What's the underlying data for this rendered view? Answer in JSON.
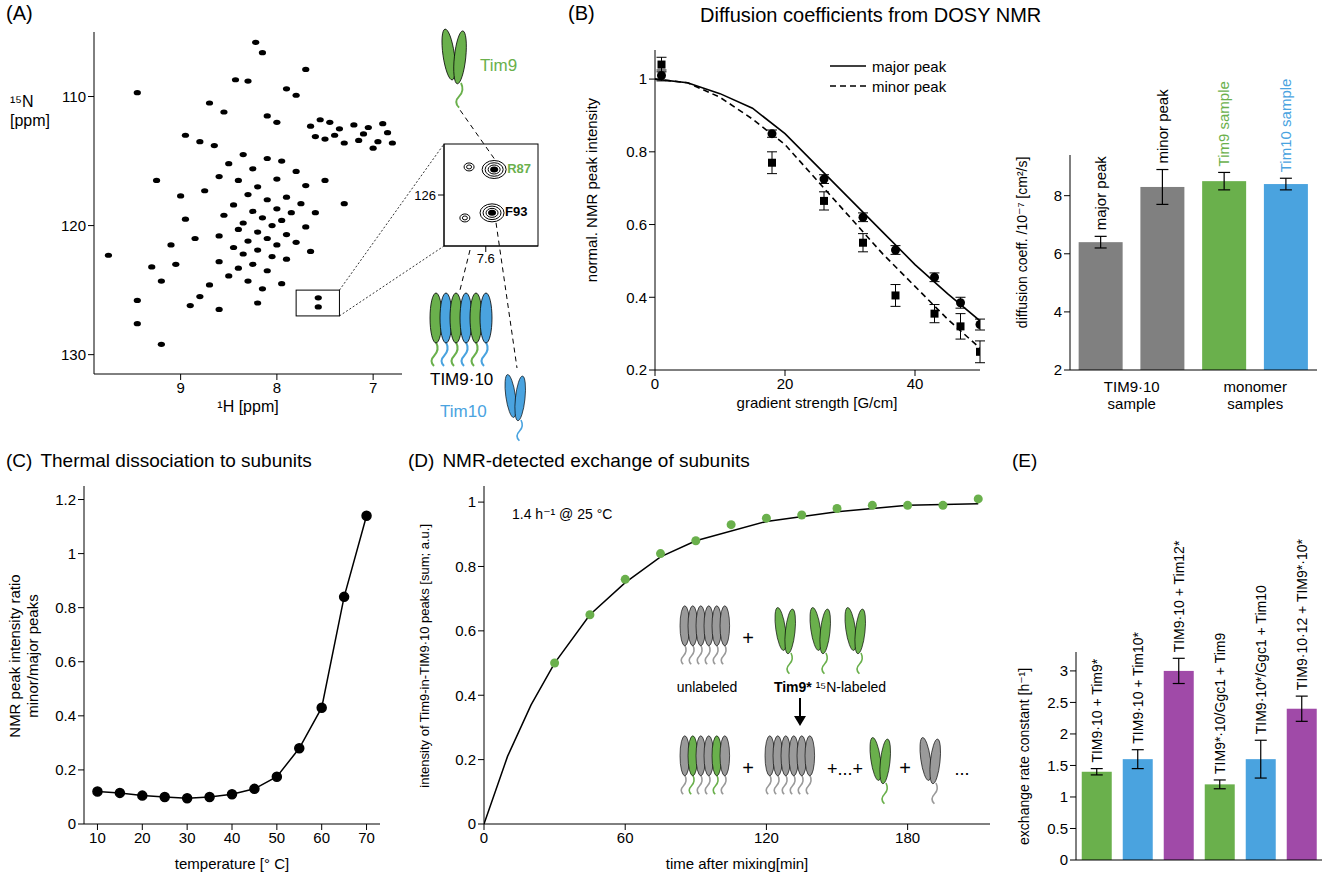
{
  "chart_data": [
    {
      "panel": "(A)",
      "type": "scatter",
      "x_label": "¹H [ppm]",
      "y_label": "¹⁵N [ppm]",
      "xlim": [
        9.9,
        6.7
      ],
      "xticks": [
        9,
        8,
        7
      ],
      "ylim": [
        131.5,
        105
      ],
      "yticks": [
        110,
        120,
        130
      ],
      "series": [
        {
          "color": "#000000",
          "marker": "ellipse",
          "x": [
            8.22,
            8.15,
            7.7,
            8.43,
            8.3,
            7.9,
            7.8,
            9.45,
            8.7,
            8.55,
            8.1,
            8.0,
            7.65,
            8.95,
            8.8,
            8.65,
            7.55,
            7.45,
            7.35,
            7.2,
            7.05,
            6.9,
            6.85,
            7.6,
            7.5,
            7.4,
            7.3,
            7.15,
            6.95,
            6.8,
            7.1,
            7.0,
            8.35,
            8.1,
            7.95,
            8.5,
            8.25,
            7.8,
            8.6,
            8.4,
            8.0,
            7.7,
            8.2,
            8.75,
            8.3,
            7.9,
            8.1,
            7.75,
            8.45,
            8.0,
            8.25,
            7.85,
            8.55,
            8.15,
            7.95,
            8.35,
            8.05,
            7.7,
            8.4,
            8.2,
            7.9,
            8.6,
            8.1,
            8.3,
            7.8,
            8.0,
            8.45,
            8.2,
            7.65,
            8.35,
            8.05,
            7.9,
            8.6,
            8.25,
            8.4,
            8.1,
            8.5,
            8.3,
            7.95,
            8.7,
            8.15,
            9.75,
            9.45,
            9.45,
            9.2,
            9.2,
            9.05,
            9.3,
            9.0,
            8.95,
            9.1,
            8.85,
            8.9,
            8.8,
            9.25,
            7.57,
            7.57,
            8.6,
            8.2,
            7.3,
            7.5,
            7.6
          ],
          "values": [
            105.8,
            106.6,
            107.9,
            108.7,
            108.8,
            109.4,
            109.9,
            109.7,
            110.5,
            111.2,
            111.5,
            112.0,
            112.3,
            113.0,
            113.5,
            113.8,
            111.8,
            112.0,
            112.5,
            112.2,
            112.4,
            112.1,
            112.8,
            113.1,
            113.3,
            113.0,
            113.6,
            113.4,
            113.5,
            113.6,
            112.9,
            114.0,
            114.5,
            114.8,
            115.0,
            115.2,
            115.6,
            115.8,
            116.2,
            116.5,
            116.4,
            116.9,
            117.0,
            117.3,
            117.6,
            117.8,
            118.0,
            118.3,
            118.4,
            118.7,
            118.9,
            119.0,
            119.2,
            119.4,
            119.6,
            119.8,
            120.0,
            120.1,
            120.3,
            120.5,
            120.7,
            120.8,
            121.0,
            121.2,
            121.3,
            121.5,
            121.7,
            121.9,
            122.0,
            122.2,
            122.4,
            122.6,
            122.8,
            123.0,
            123.3,
            123.5,
            123.9,
            124.3,
            124.5,
            124.6,
            124.9,
            122.3,
            125.8,
            127.6,
            124.3,
            129.2,
            123.0,
            123.2,
            117.7,
            119.5,
            121.5,
            121.0,
            126.2,
            125.5,
            116.5,
            125.6,
            126.3,
            126.5,
            126.0,
            118.3,
            116.5,
            119.0
          ]
        }
      ],
      "diagram_labels": [
        {
          "text": "Tim9",
          "color": "#6ab04c"
        },
        {
          "text": "TIM9·10",
          "color": "#000000"
        },
        {
          "text": "Tim10",
          "color": "#4aa3df"
        }
      ]
    },
    {
      "type": "scatter",
      "xlim": [
        7.8,
        7.35
      ],
      "xticks": [
        7.6
      ],
      "ylim": [
        127,
        125
      ],
      "yticks": [
        126
      ],
      "series": [
        {
          "color": "#000000",
          "marker": "contour",
          "x": [
            7.56,
            7.57
          ],
          "values": [
            125.5,
            126.35
          ]
        },
        {
          "color": "#000000",
          "marker": "ring",
          "x": [
            7.68,
            7.7
          ],
          "values": [
            125.45,
            126.45
          ]
        }
      ],
      "annotations": [
        {
          "text": "R87",
          "color": "#6ab04c"
        },
        {
          "text": "F93",
          "color": "#000000"
        }
      ]
    },
    {
      "panel": "(B)",
      "type": "line",
      "title": "Diffusion coefficients from DOSY NMR",
      "x_label": "gradient strength [G/cm]",
      "y_label": "normal. NMR peak intensity",
      "xlim": [
        0,
        50
      ],
      "xticks": [
        0,
        20,
        40
      ],
      "ylim": [
        0.2,
        1.08
      ],
      "yticks": [
        0.2,
        0.4,
        0.6,
        0.8,
        1
      ],
      "legend": "upper right",
      "series": [
        {
          "name": "major peak",
          "color": "#000000",
          "line_style": "solid",
          "marker": "circle",
          "x": [
            1,
            18,
            26,
            32,
            37,
            43,
            47,
            50
          ],
          "values": [
            1.01,
            0.85,
            0.725,
            0.62,
            0.53,
            0.455,
            0.385,
            0.325
          ],
          "errors": [
            0.015,
            0.01,
            0.012,
            0.012,
            0.012,
            0.012,
            0.015,
            0.015
          ],
          "fit_x": [
            0,
            5,
            10,
            15,
            20,
            25,
            30,
            35,
            40,
            45,
            50
          ],
          "fit_values": [
            1,
            0.99,
            0.96,
            0.92,
            0.85,
            0.76,
            0.67,
            0.58,
            0.49,
            0.41,
            0.335
          ]
        },
        {
          "name": "minor peak",
          "color": "#000000",
          "line_style": "dashed",
          "marker": "square",
          "x": [
            1,
            18,
            26,
            32,
            37,
            43,
            47,
            50
          ],
          "values": [
            1.04,
            0.77,
            0.665,
            0.55,
            0.405,
            0.355,
            0.32,
            0.25
          ],
          "errors": [
            0.02,
            0.03,
            0.025,
            0.025,
            0.03,
            0.025,
            0.035,
            0.03
          ],
          "fit_x": [
            0,
            5,
            10,
            15,
            20,
            25,
            30,
            35,
            40,
            45,
            50
          ],
          "fit_values": [
            1,
            0.99,
            0.95,
            0.89,
            0.82,
            0.72,
            0.62,
            0.52,
            0.43,
            0.34,
            0.26
          ]
        }
      ]
    },
    {
      "type": "bar",
      "y_label": "diffusion coeff. /10⁻⁷ [cm²/s]",
      "categories": [
        "major peak",
        "minor peak",
        "Tim9 sample",
        "Tim10 sample"
      ],
      "values": [
        6.4,
        8.3,
        8.5,
        8.4
      ],
      "errors": [
        0.2,
        0.6,
        0.3,
        0.2
      ],
      "colors": [
        "#808080",
        "#808080",
        "#6ab04c",
        "#4aa3df"
      ],
      "groups": [
        {
          "name": "TIM9·10 sample",
          "size": 2
        },
        {
          "name": "monomer samples",
          "size": 2
        }
      ],
      "ylim": [
        2,
        9.4
      ],
      "yticks": [
        2,
        4,
        6,
        8
      ]
    },
    {
      "panel": "(C)",
      "type": "line",
      "title": "Thermal dissociation to subunits",
      "x_label": "temperature [° C]",
      "y_label": "NMR peak intensity ratio minor/major peaks",
      "color": "#000000",
      "marker": "circle",
      "x": [
        10,
        15,
        20,
        25,
        30,
        35,
        40,
        45,
        50,
        55,
        60,
        65,
        70
      ],
      "values": [
        0.12,
        0.115,
        0.105,
        0.1,
        0.095,
        0.1,
        0.11,
        0.13,
        0.175,
        0.28,
        0.43,
        0.84,
        1.14
      ],
      "xlim": [
        7,
        73
      ],
      "xticks": [
        10,
        20,
        30,
        40,
        50,
        60,
        70
      ],
      "ylim": [
        0,
        1.25
      ],
      "yticks": [
        0,
        0.2,
        0.4,
        0.6,
        0.8,
        1,
        1.2
      ]
    },
    {
      "panel": "(D)",
      "type": "scatter",
      "title": "NMR-detected exchange of subunits",
      "x_label": "time after mixing[min]",
      "y_label": "intensity of Tim9-in-TIM9·10 peaks [sum; a.u.]",
      "xlim": [
        0,
        215
      ],
      "xticks": [
        0,
        60,
        120,
        180
      ],
      "ylim": [
        0,
        1.05
      ],
      "yticks": [
        0,
        0.2,
        0.4,
        0.6,
        0.8,
        1
      ],
      "series": [
        {
          "type": "scatter",
          "color": "#6ab04c",
          "marker": "circle",
          "x": [
            30,
            45,
            60,
            75,
            90,
            105,
            120,
            135,
            150,
            165,
            180,
            195,
            210
          ],
          "values": [
            0.5,
            0.65,
            0.76,
            0.84,
            0.88,
            0.93,
            0.95,
            0.96,
            0.98,
            0.99,
            0.99,
            0.99,
            1.01
          ]
        },
        {
          "type": "line",
          "color": "#000000",
          "line_style": "solid",
          "x": [
            0,
            10,
            20,
            30,
            45,
            60,
            75,
            90,
            120,
            150,
            180,
            210
          ],
          "values": [
            0,
            0.21,
            0.37,
            0.5,
            0.65,
            0.75,
            0.83,
            0.88,
            0.94,
            0.97,
            0.99,
            0.995
          ]
        }
      ],
      "annotation": "1.4 h⁻¹ @ 25 °C",
      "scheme": {
        "complex_label": "unlabeled",
        "monomer_label": "Tim9*",
        "monomer_note": "¹⁵N-labeled",
        "plus": "+",
        "plus_many": "+...+",
        "ellipsis": "..."
      }
    },
    {
      "panel": "(E)",
      "type": "bar",
      "y_label": "exchange rate constant [h⁻¹]",
      "categories": [
        "TIM9·10 + Tim9*",
        "TIM9·10 + Tim10*",
        "TIM9·10 + Tim12*",
        "TIM9*·10/Ggc1 + Tim9",
        "TIM9·10*/Ggc1 + Tim10",
        "TIM9·10·12 + TIM9*·10*"
      ],
      "values": [
        1.4,
        1.6,
        3.0,
        1.2,
        1.6,
        2.4
      ],
      "errors": [
        0.05,
        0.15,
        0.2,
        0.07,
        0.3,
        0.2
      ],
      "colors": [
        "#6ab04c",
        "#4aa3df",
        "#a04aa8",
        "#6ab04c",
        "#4aa3df",
        "#a04aa8"
      ],
      "ylim": [
        0,
        3.3
      ],
      "yticks": [
        0,
        0.5,
        1,
        1.5,
        2,
        2.5,
        3
      ],
      "tick_labels": "y"
    }
  ]
}
